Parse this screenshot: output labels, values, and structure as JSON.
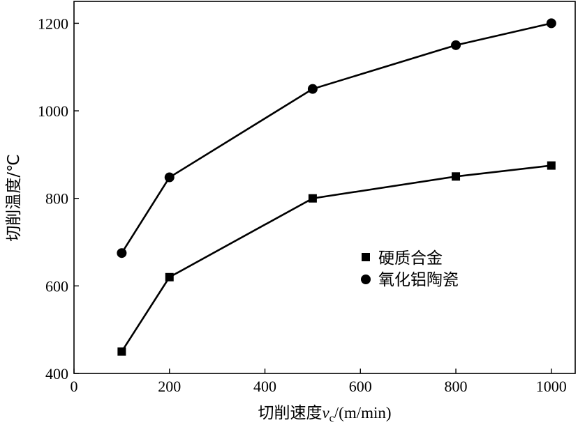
{
  "chart_data": {
    "type": "line",
    "x": [
      100,
      200,
      500,
      800,
      1000
    ],
    "series": [
      {
        "name": "硬质合金",
        "marker": "square",
        "values": [
          450,
          620,
          800,
          850,
          875
        ]
      },
      {
        "name": "氧化铝陶瓷",
        "marker": "circle",
        "values": [
          675,
          848,
          1050,
          1150,
          1200
        ]
      }
    ],
    "xlabel": {
      "main": "切削速度",
      "var": "v",
      "sub": "c",
      "unit": "/(m/min)"
    },
    "ylabel": "切削温度/℃",
    "xlim": [
      0,
      1050
    ],
    "ylim": [
      400,
      1250
    ],
    "xticks": [
      0,
      200,
      400,
      600,
      800,
      1000
    ],
    "yticks": [
      400,
      600,
      800,
      1000,
      1200
    ],
    "legend": {
      "placement": "center-right"
    },
    "grid": false,
    "colors": {
      "line": "#000000",
      "marker": "#000000"
    }
  }
}
